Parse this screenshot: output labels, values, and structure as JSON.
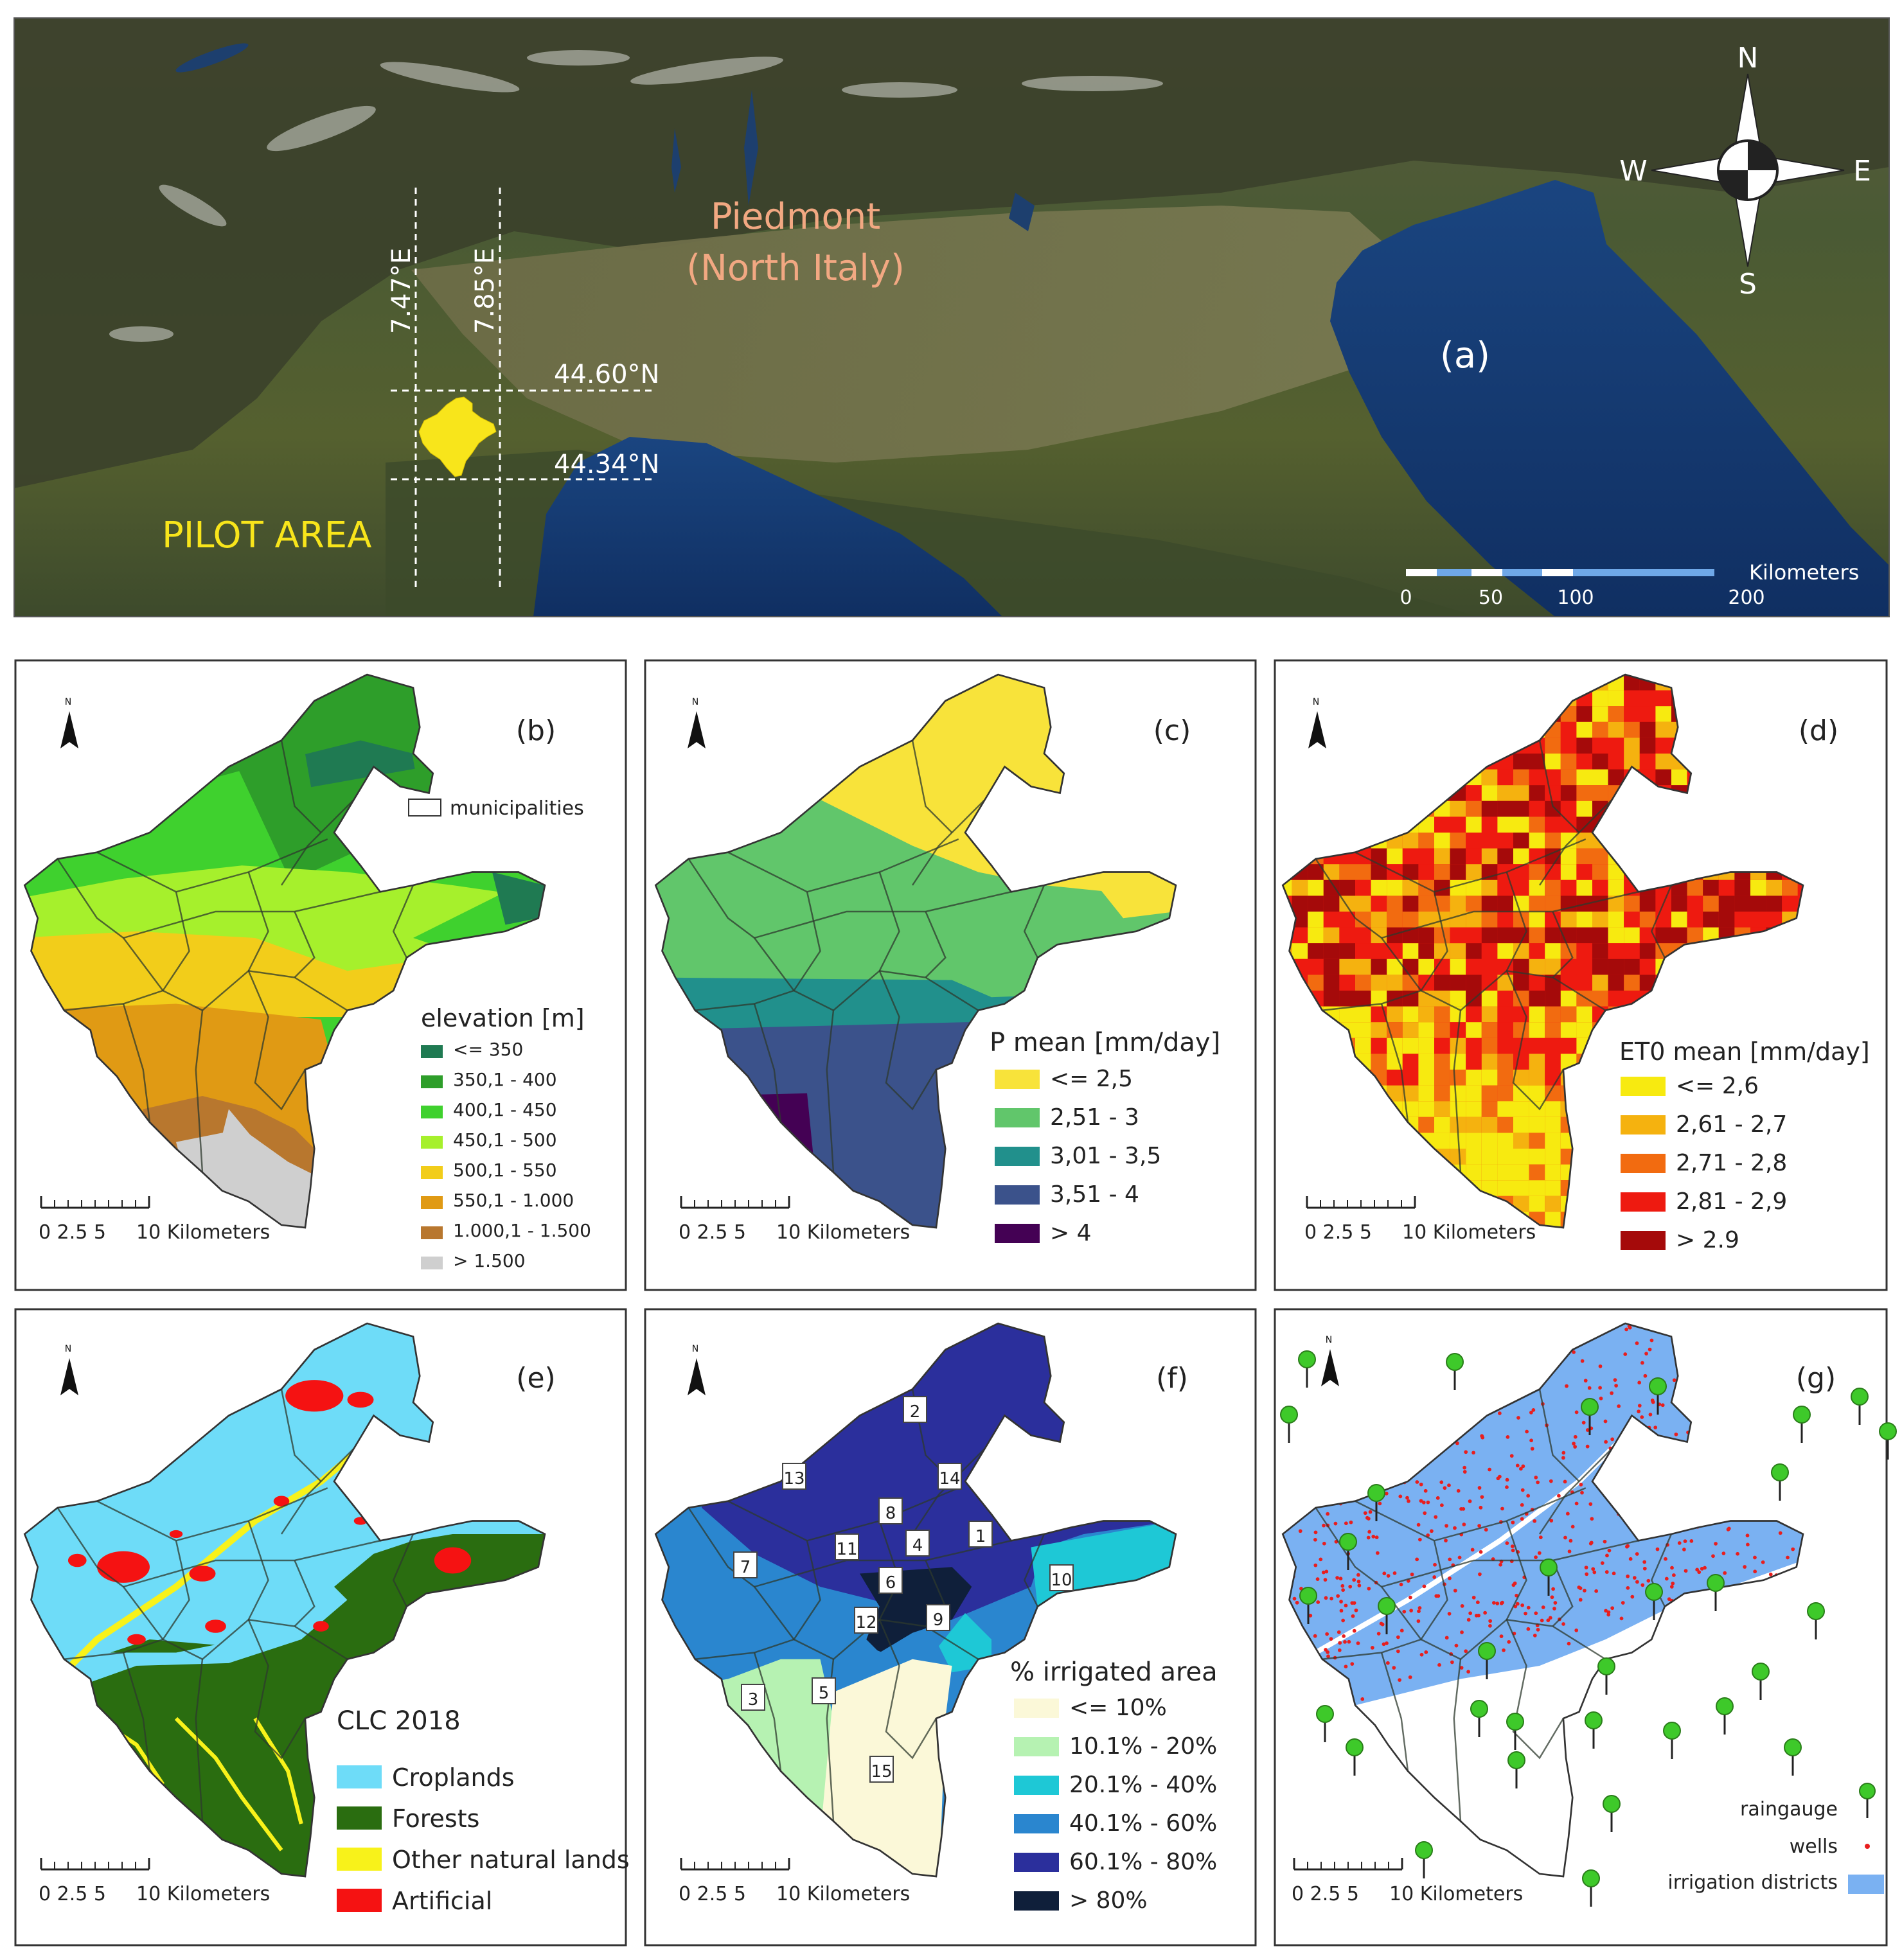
{
  "panel_a": {
    "label": "(a)",
    "region_line1": "Piedmont",
    "region_line2": "(North Italy)",
    "lon1": "7.47°E",
    "lon2": "7.85°E",
    "lat1": "44.60°N",
    "lat2": "44.34°N",
    "pilot": "PILOT AREA",
    "scale_unit": "Kilometers",
    "scale_ticks": [
      "0",
      "50",
      "100",
      "200"
    ],
    "compass": {
      "n": "N",
      "s": "S",
      "e": "E",
      "w": "W"
    },
    "colors": {
      "region": "#f2a882",
      "pilot": "#f8e51b",
      "sea": "#123a73"
    }
  },
  "north_small": "N",
  "scale_small": {
    "ticks": "0 2.5 5",
    "unit": "10 Kilometers"
  },
  "panel_b": {
    "label": "(b)",
    "municipalities": "municipalities",
    "legend_title": "elevation [m]",
    "classes": [
      {
        "label": "<= 350",
        "color": "#1f7a52"
      },
      {
        "label": "350,1 - 400",
        "color": "#2e9e2a"
      },
      {
        "label": "400,1 - 450",
        "color": "#3fd12e"
      },
      {
        "label": "450,1 - 500",
        "color": "#a6f02c"
      },
      {
        "label": "500,1 - 550",
        "color": "#f2cd1a"
      },
      {
        "label": "550,1 - 1.000",
        "color": "#e09a14"
      },
      {
        "label": "1.000,1 - 1.500",
        "color": "#b8772e"
      },
      {
        "label": "> 1.500",
        "color": "#cfcfcf"
      }
    ]
  },
  "panel_c": {
    "label": "(c)",
    "legend_title": "P mean [mm/day]",
    "classes": [
      {
        "label": "<= 2,5",
        "color": "#f8e33a"
      },
      {
        "label": "2,51 - 3",
        "color": "#61c66b"
      },
      {
        "label": "3,01 - 3,5",
        "color": "#21908c"
      },
      {
        "label": "3,51 - 4",
        "color": "#3b528b"
      },
      {
        "label": "> 4",
        "color": "#440154"
      }
    ]
  },
  "panel_d": {
    "label": "(d)",
    "legend_title": "ET0 mean [mm/day]",
    "classes": [
      {
        "label": "<= 2,6",
        "color": "#f7ea10"
      },
      {
        "label": "2,61 - 2,7",
        "color": "#f5b20f"
      },
      {
        "label": "2,71 - 2,8",
        "color": "#f26b10"
      },
      {
        "label": "2,81 - 2,9",
        "color": "#ee1a10"
      },
      {
        "label": "> 2.9",
        "color": "#a50a0a"
      }
    ]
  },
  "panel_e": {
    "label": "(e)",
    "legend_title": "CLC 2018",
    "classes": [
      {
        "label": "Croplands",
        "color": "#6edcf8"
      },
      {
        "label": "Forests",
        "color": "#2a6d10"
      },
      {
        "label": "Other natural lands",
        "color": "#f8f21a"
      },
      {
        "label": "Artificial",
        "color": "#f51212"
      }
    ]
  },
  "panel_f": {
    "label": "(f)",
    "legend_title": "% irrigated area",
    "classes": [
      {
        "label": "<= 10%",
        "color": "#fbf8d8"
      },
      {
        "label": "10.1% - 20%",
        "color": "#b6f2b2"
      },
      {
        "label": "20.1% - 40%",
        "color": "#1ec8d6"
      },
      {
        "label": "40.1% - 60%",
        "color": "#2a86cf"
      },
      {
        "label": "60.1% - 80%",
        "color": "#2b2f9c"
      },
      {
        "label": "> 80%",
        "color": "#0f1f3a"
      }
    ],
    "districts": [
      "1",
      "2",
      "3",
      "4",
      "5",
      "6",
      "7",
      "8",
      "9",
      "10",
      "11",
      "12",
      "13",
      "14",
      "15"
    ]
  },
  "panel_g": {
    "label": "(g)",
    "legend": [
      {
        "label": "raingauge",
        "color": "#3ec92a"
      },
      {
        "label": "wells",
        "color": "#e81e1e"
      },
      {
        "label": "irrigation districts",
        "color": "#7ab1f2"
      }
    ]
  }
}
